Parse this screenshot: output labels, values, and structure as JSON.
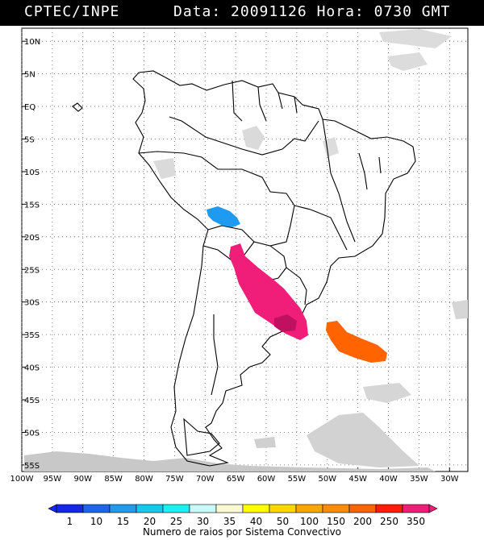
{
  "header": {
    "source": "CPTEC/INPE",
    "date_label": "Data:",
    "date": "20091126",
    "time_label": "Hora:",
    "time": "0730 GMT"
  },
  "map": {
    "lat_labels": [
      "10N",
      "5N",
      "EQ",
      "5S",
      "10S",
      "15S",
      "20S",
      "25S",
      "30S",
      "35S",
      "40S",
      "45S",
      "50S",
      "55S"
    ],
    "lon_labels": [
      "100W",
      "95W",
      "90W",
      "85W",
      "80W",
      "75W",
      "70W",
      "65W",
      "60W",
      "55W",
      "50W",
      "45W",
      "40W",
      "35W",
      "30W"
    ],
    "lon_range": [
      -100,
      -27
    ],
    "lat_range": [
      -56,
      12
    ],
    "systems": [
      {
        "name": "Bolivia cell",
        "color_class": "15"
      },
      {
        "name": "Paraguay-Argentina line",
        "color_class": "350"
      },
      {
        "name": "Uruguay core",
        "color_class": "350"
      },
      {
        "name": "Atlantic system",
        "color_class": "200"
      }
    ]
  },
  "colorbar": {
    "labels": [
      "1",
      "10",
      "15",
      "20",
      "25",
      "30",
      "35",
      "40",
      "50",
      "100",
      "150",
      "200",
      "250",
      "350"
    ],
    "colors": [
      "#1428e6",
      "#1e64f0",
      "#1e9bf0",
      "#16c8f0",
      "#1ef0f0",
      "#c8fafa",
      "#fafad2",
      "#ffff00",
      "#ffd700",
      "#ffa500",
      "#ff8c00",
      "#ff6400",
      "#ff1e00",
      "#f01e78"
    ],
    "caption": "Numero de raios por Sistema Convectivo"
  }
}
